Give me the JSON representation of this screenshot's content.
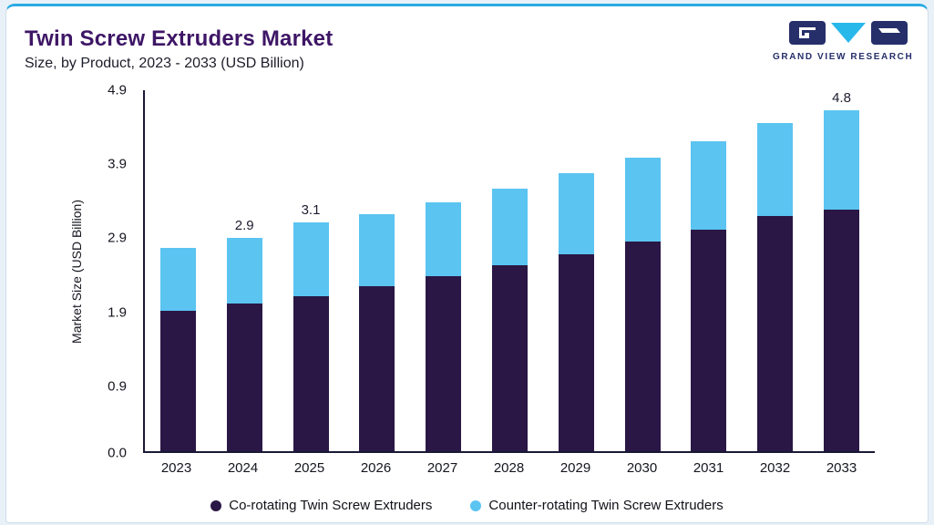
{
  "header": {
    "title": "Twin Screw Extruders Market",
    "subtitle": "Size, by Product, 2023 - 2033 (USD Billion)",
    "logo_text": "GRAND VIEW RESEARCH"
  },
  "colors": {
    "co_rotating": "#2a1745",
    "counter_rotating": "#5bc4f1",
    "title": "#3e1666",
    "accent_line": "#29abe2",
    "axis": "#191935"
  },
  "chart_data": {
    "type": "bar",
    "stacked": true,
    "title": "Twin Screw Extruders Market",
    "subtitle": "Size, by Product, 2023 - 2033 (USD Billion)",
    "ylabel": "Market Size (USD Billion)",
    "xlabel": "",
    "ymax": 4.9,
    "yticks": [
      0.0,
      0.9,
      1.9,
      2.9,
      3.9,
      4.9
    ],
    "grid": false,
    "legend_position": "bottom",
    "categories": [
      "2023",
      "2024",
      "2025",
      "2026",
      "2027",
      "2028",
      "2029",
      "2030",
      "2031",
      "2032",
      "2033"
    ],
    "series": [
      {
        "name": "Co-rotating Twin Screw Extruders",
        "color": "#2a1745",
        "values": [
          1.9,
          2.0,
          2.1,
          2.24,
          2.37,
          2.52,
          2.67,
          2.85,
          3.01,
          3.19,
          3.4
        ]
      },
      {
        "name": "Counter-rotating Twin Screw Extruders",
        "color": "#5bc4f1",
        "values": [
          0.86,
          0.9,
          1.0,
          0.98,
          1.01,
          1.05,
          1.1,
          1.14,
          1.2,
          1.26,
          1.4
        ]
      }
    ],
    "totals": [
      2.76,
      2.9,
      3.1,
      3.22,
      3.38,
      3.57,
      3.77,
      3.99,
      4.21,
      4.45,
      4.8
    ],
    "bar_labels": [
      "",
      "2.9",
      "3.1",
      "",
      "",
      "",
      "",
      "",
      "",
      "",
      "4.8"
    ]
  }
}
